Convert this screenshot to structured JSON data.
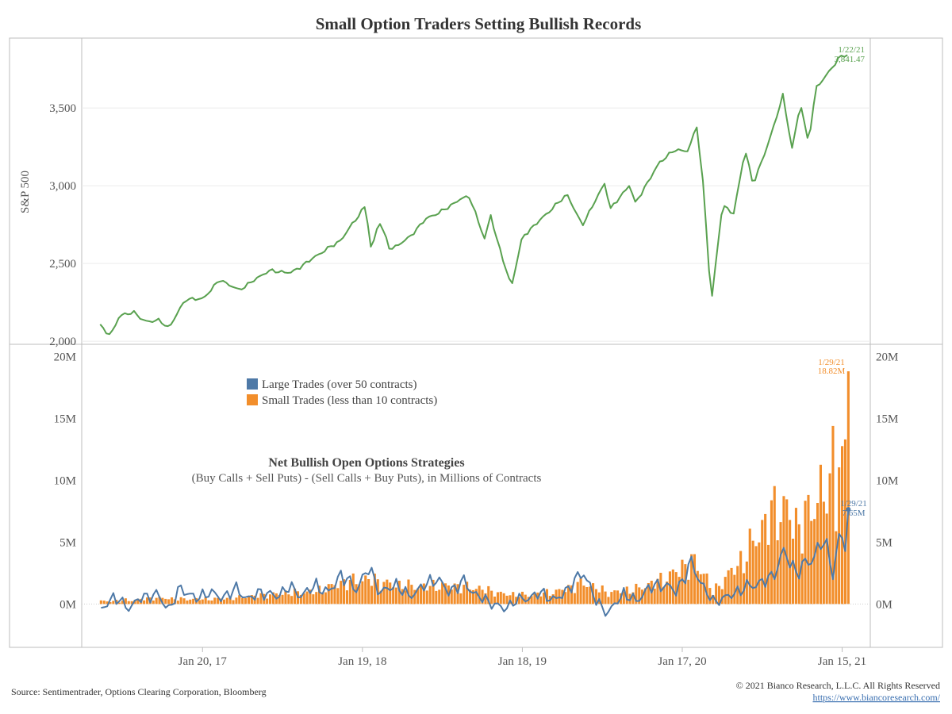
{
  "chart_data": [
    {
      "type": "line",
      "title": "Small Option Traders Setting Bullish Records",
      "ylabel": "S&P 500",
      "ylim": [
        1980,
        3950
      ],
      "yticks": [
        2000,
        2500,
        3000,
        3500
      ],
      "ytick_labels": [
        "2,000",
        "2,500",
        "3,000",
        "3,500"
      ],
      "color": "#59a14f",
      "x_start": "2016-06-01",
      "x_end": "2021-01-29",
      "x_range": [
        "2016-04-20",
        "2021-03-20"
      ],
      "anchors": [
        [
          "2016-06-01",
          2099
        ],
        [
          "2016-06-24",
          2037
        ],
        [
          "2016-07-15",
          2161
        ],
        [
          "2016-08-15",
          2190
        ],
        [
          "2016-09-09",
          2128
        ],
        [
          "2016-10-14",
          2133
        ],
        [
          "2016-11-04",
          2085
        ],
        [
          "2016-12-13",
          2271
        ],
        [
          "2017-01-20",
          2271
        ],
        [
          "2017-03-01",
          2395
        ],
        [
          "2017-04-13",
          2328
        ],
        [
          "2017-06-19",
          2453
        ],
        [
          "2017-08-11",
          2441
        ],
        [
          "2017-10-20",
          2575
        ],
        [
          "2017-11-30",
          2647
        ],
        [
          "2018-01-26",
          2872
        ],
        [
          "2018-02-08",
          2581
        ],
        [
          "2018-02-26",
          2779
        ],
        [
          "2018-03-23",
          2588
        ],
        [
          "2018-05-04",
          2663
        ],
        [
          "2018-06-12",
          2786
        ],
        [
          "2018-07-25",
          2846
        ],
        [
          "2018-08-29",
          2914
        ],
        [
          "2018-09-20",
          2930
        ],
        [
          "2018-10-24",
          2656
        ],
        [
          "2018-11-07",
          2813
        ],
        [
          "2018-11-23",
          2633
        ],
        [
          "2018-12-24",
          2351
        ],
        [
          "2019-01-18",
          2670
        ],
        [
          "2019-03-15",
          2822
        ],
        [
          "2019-04-30",
          2945
        ],
        [
          "2019-06-03",
          2744
        ],
        [
          "2019-07-26",
          3025
        ],
        [
          "2019-08-05",
          2844
        ],
        [
          "2019-09-19",
          3006
        ],
        [
          "2019-10-02",
          2887
        ],
        [
          "2019-11-27",
          3153
        ],
        [
          "2019-12-31",
          3230
        ],
        [
          "2020-01-31",
          3225
        ],
        [
          "2020-02-19",
          3386
        ],
        [
          "2020-03-06",
          2972
        ],
        [
          "2020-03-23",
          2237
        ],
        [
          "2020-04-17",
          2874
        ],
        [
          "2020-05-13",
          2820
        ],
        [
          "2020-06-08",
          3232
        ],
        [
          "2020-06-26",
          3009
        ],
        [
          "2020-07-31",
          3271
        ],
        [
          "2020-09-02",
          3580
        ],
        [
          "2020-09-23",
          3237
        ],
        [
          "2020-10-12",
          3534
        ],
        [
          "2020-10-30",
          3270
        ],
        [
          "2020-11-16",
          3627
        ],
        [
          "2020-12-08",
          3702
        ],
        [
          "2021-01-08",
          3824
        ],
        [
          "2021-01-22",
          3841
        ]
      ],
      "callout": {
        "date": "1/22/21",
        "value": "3,841.47"
      }
    },
    {
      "type": "bar+line",
      "title": "Net Bullish Open Options Strategies",
      "subtitle": "(Buy Calls + Sell Puts) - (Sell Calls + Buy Puts), in Millions of Contracts",
      "ylim": [
        -3.5,
        21
      ],
      "yticks": [
        0,
        5,
        10,
        15,
        20
      ],
      "ytick_labels": [
        "0M",
        "5M",
        "10M",
        "15M",
        "20M"
      ],
      "x_start": "2016-06-03",
      "x_end": "2021-01-29",
      "x_ticks": [
        "2017-01-20",
        "2018-01-19",
        "2019-01-18",
        "2020-01-17",
        "2021-01-15"
      ],
      "x_tick_labels": [
        "Jan 20, 17",
        "Jan 19, 18",
        "Jan 18, 19",
        "Jan 17, 20",
        "Jan 15, 21"
      ],
      "series": [
        {
          "name": "Large Trades (over 50 contracts)",
          "color": "#4e79a7",
          "anchors": [
            [
              "2016-06-03",
              -0.5
            ],
            [
              "2016-07-01",
              0.6
            ],
            [
              "2016-08-05",
              -0.3
            ],
            [
              "2016-09-02",
              0.5
            ],
            [
              "2016-10-07",
              0.8
            ],
            [
              "2016-11-04",
              -0.4
            ],
            [
              "2016-12-02",
              1.3
            ],
            [
              "2017-01-06",
              0.4
            ],
            [
              "2017-02-03",
              1.0
            ],
            [
              "2017-03-03",
              0.5
            ],
            [
              "2017-04-07",
              1.2
            ],
            [
              "2017-05-05",
              0.4
            ],
            [
              "2017-06-02",
              1.0
            ],
            [
              "2017-07-07",
              0.6
            ],
            [
              "2017-08-04",
              1.4
            ],
            [
              "2017-09-01",
              0.7
            ],
            [
              "2017-10-06",
              1.5
            ],
            [
              "2017-11-03",
              0.9
            ],
            [
              "2017-12-01",
              2.4
            ],
            [
              "2018-01-05",
              1.2
            ],
            [
              "2018-02-02",
              2.9
            ],
            [
              "2018-03-02",
              0.9
            ],
            [
              "2018-04-06",
              1.6
            ],
            [
              "2018-05-04",
              0.6
            ],
            [
              "2018-06-01",
              1.3
            ],
            [
              "2018-07-06",
              2.1
            ],
            [
              "2018-08-03",
              1.0
            ],
            [
              "2018-09-07",
              1.8
            ],
            [
              "2018-10-05",
              0.7
            ],
            [
              "2018-11-02",
              0.2
            ],
            [
              "2018-12-07",
              -0.4
            ],
            [
              "2019-01-04",
              0.3
            ],
            [
              "2019-02-01",
              0.5
            ],
            [
              "2019-03-01",
              0.9
            ],
            [
              "2019-04-05",
              0.3
            ],
            [
              "2019-05-03",
              1.3
            ],
            [
              "2019-06-07",
              2.6
            ],
            [
              "2019-07-05",
              0.2
            ],
            [
              "2019-08-02",
              -0.7
            ],
            [
              "2019-09-06",
              0.9
            ],
            [
              "2019-10-04",
              0.2
            ],
            [
              "2019-11-01",
              1.3
            ],
            [
              "2019-12-06",
              1.6
            ],
            [
              "2020-01-03",
              1.0
            ],
            [
              "2020-02-07",
              3.3
            ],
            [
              "2020-03-06",
              1.3
            ],
            [
              "2020-03-27",
              0.2
            ],
            [
              "2020-05-01",
              0.6
            ],
            [
              "2020-06-05",
              1.3
            ],
            [
              "2020-07-03",
              1.6
            ],
            [
              "2020-08-07",
              2.1
            ],
            [
              "2020-09-04",
              4.2
            ],
            [
              "2020-10-02",
              2.6
            ],
            [
              "2020-11-06",
              3.6
            ],
            [
              "2020-12-04",
              5.2
            ],
            [
              "2020-12-25",
              2.6
            ],
            [
              "2021-01-08",
              5.3
            ],
            [
              "2021-01-22",
              4.8
            ],
            [
              "2021-01-29",
              7.65
            ]
          ],
          "callout": {
            "date": "1/29/21",
            "value": "7.65M"
          }
        },
        {
          "name": "Small Trades (less than 10 contracts)",
          "color": "#f28e2b",
          "anchors": [
            [
              "2016-06-03",
              0.2
            ],
            [
              "2016-08-05",
              0.3
            ],
            [
              "2016-10-07",
              0.5
            ],
            [
              "2016-12-02",
              0.4
            ],
            [
              "2017-02-03",
              0.4
            ],
            [
              "2017-04-07",
              0.5
            ],
            [
              "2017-06-02",
              0.7
            ],
            [
              "2017-08-04",
              0.9
            ],
            [
              "2017-10-06",
              1.0
            ],
            [
              "2017-12-01",
              1.7
            ],
            [
              "2018-02-02",
              2.0
            ],
            [
              "2018-04-06",
              1.5
            ],
            [
              "2018-06-01",
              1.4
            ],
            [
              "2018-08-03",
              1.5
            ],
            [
              "2018-10-05",
              1.3
            ],
            [
              "2018-12-07",
              0.8
            ],
            [
              "2019-02-01",
              0.7
            ],
            [
              "2019-04-05",
              1.0
            ],
            [
              "2019-06-07",
              1.7
            ],
            [
              "2019-08-02",
              0.9
            ],
            [
              "2019-10-04",
              1.2
            ],
            [
              "2019-12-06",
              2.0
            ],
            [
              "2020-02-07",
              3.4
            ],
            [
              "2020-03-06",
              2.6
            ],
            [
              "2020-03-27",
              0.9
            ],
            [
              "2020-05-01",
              2.4
            ],
            [
              "2020-06-05",
              3.6
            ],
            [
              "2020-07-03",
              5.4
            ],
            [
              "2020-08-07",
              7.2
            ],
            [
              "2020-09-04",
              7.8
            ],
            [
              "2020-10-02",
              6.2
            ],
            [
              "2020-11-06",
              7.4
            ],
            [
              "2020-12-04",
              9.8
            ],
            [
              "2020-12-25",
              6.4
            ],
            [
              "2021-01-08",
              10.6
            ],
            [
              "2021-01-22",
              12.0
            ],
            [
              "2021-01-29",
              18.82
            ]
          ],
          "callout": {
            "date": "1/29/21",
            "value": "18.82M"
          }
        }
      ]
    }
  ],
  "footer": {
    "source": "Source: Sentimentrader, Options Clearing Corporation, Bloomberg",
    "copyright": "© 2021 Bianco Research, L.L.C. All Rights Reserved",
    "url": "https://www.biancoresearch.com/"
  }
}
